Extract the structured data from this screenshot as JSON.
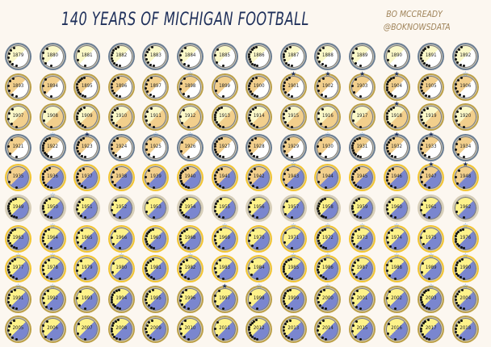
{
  "title": "140 YEARS OF MICHIGAN FOOTBALL",
  "byline": {
    "author": "BO MCCREADY",
    "handle": "@BOKNOWSDATA"
  },
  "colors": {
    "background": "#fcf7f0",
    "title": "#1e2f5a",
    "byline": "#a0845a",
    "fill_light_yellow": "#fbf8c8",
    "fill_bright_yellow": "#fdf28a",
    "fill_tan": "#f2cf8c",
    "fill_cream": "#f6efe0",
    "wedge_blue": "#7a86cf",
    "wedge_white": "#ffffff",
    "border_gray_blue": "#6b7e93",
    "border_gold": "#bca048",
    "border_bright_gold": "#f2c531",
    "border_cream": "#d8cfb8",
    "border_navy": "#2c3c6c",
    "star_navy": "#1e2f5a",
    "star_outline": "#5b8fd1",
    "dot": "#111111"
  },
  "chart_data": {
    "type": "table",
    "title": "140 YEARS OF MICHIGAN FOOTBALL",
    "subtitle": "BO MCCREADY @BOKNOWSDATA",
    "layout": {
      "columns": 14,
      "rows": 10,
      "glyph": "circular badge per season"
    },
    "rows": [
      [
        "1879",
        "1880",
        "1881",
        "1882",
        "1883",
        "1884",
        "1885",
        "1886",
        "1887",
        "1888",
        "1889",
        "1890",
        "1891",
        "1892"
      ],
      [
        "1893",
        "1894",
        "1895",
        "1896",
        "1897",
        "1898",
        "1899",
        "1900",
        "1901",
        "1902",
        "1903",
        "1904",
        "1905",
        "1906"
      ],
      [
        "1907",
        "1908",
        "1909",
        "1910",
        "1911",
        "1912",
        "1913",
        "1914",
        "1915",
        "1916",
        "1917",
        "1918",
        "1919",
        "1920"
      ],
      [
        "1921",
        "1922",
        "1923",
        "1924",
        "1925",
        "1926",
        "1927",
        "1928",
        "1929",
        "1930",
        "1931",
        "1932",
        "1933",
        "1934"
      ],
      [
        "1935",
        "1936",
        "1937",
        "1938",
        "1939",
        "1940",
        "1941",
        "1942",
        "1943",
        "1944",
        "1945",
        "1946",
        "1947",
        "1948"
      ],
      [
        "1949",
        "1950",
        "1951",
        "1952",
        "1953",
        "1954",
        "1955",
        "1956",
        "1957",
        "1958",
        "1959",
        "1960",
        "1961",
        "1962"
      ],
      [
        "1963",
        "1964",
        "1965",
        "1966",
        "1967",
        "1968",
        "1969",
        "1970",
        "1971",
        "1972",
        "1973",
        "1974",
        "1975",
        "1976"
      ],
      [
        "1977",
        "1978",
        "1979",
        "1980",
        "1981",
        "1982",
        "1983",
        "1984",
        "1985",
        "1986",
        "1987",
        "1988",
        "1989",
        "1990"
      ],
      [
        "1991",
        "1992",
        "1993",
        "1994",
        "1995",
        "1996",
        "1997",
        "1998",
        "1999",
        "2000",
        "2001",
        "2002",
        "2003",
        "2004"
      ],
      [
        "2005",
        "2006",
        "2007",
        "2008",
        "2009",
        "2010",
        "2011",
        "2012",
        "2013",
        "2014",
        "2015",
        "2016",
        "2017",
        "2018"
      ]
    ],
    "row_styles": [
      {
        "fill": "fill_light_yellow",
        "wedge": "wedge_white",
        "border": "border_gray_blue"
      },
      {
        "fill": "fill_tan",
        "wedge": "wedge_white",
        "border": "border_gold"
      },
      {
        "fill": "fill_light_yellow",
        "wedge": "fill_tan",
        "border": "border_gold"
      },
      {
        "fill": "fill_tan",
        "wedge": "wedge_white",
        "border": "border_gray_blue"
      },
      {
        "fill": "fill_tan",
        "wedge": "wedge_blue",
        "border": "border_bright_gold"
      },
      {
        "fill": "fill_bright_yellow",
        "wedge": "wedge_blue",
        "border": "border_cream"
      },
      {
        "fill": "fill_bright_yellow",
        "wedge": "wedge_blue",
        "border": "border_bright_gold"
      },
      {
        "fill": "fill_bright_yellow",
        "wedge": "wedge_blue",
        "border": "border_bright_gold"
      },
      {
        "fill": "fill_bright_yellow",
        "wedge": "wedge_blue",
        "border": "border_gold"
      },
      {
        "fill": "fill_bright_yellow",
        "wedge": "wedge_blue",
        "border": "border_gold"
      }
    ],
    "national_title_stars": [
      "1901",
      "1902",
      "1903",
      "1904",
      "1918",
      "1923",
      "1932",
      "1933",
      "1947",
      "1948",
      "1997"
    ],
    "conference_title_stars": [
      "1898",
      "1906",
      "1922",
      "1925",
      "1926",
      "1930",
      "1931",
      "1943",
      "1950",
      "1964",
      "1969",
      "1971",
      "1972",
      "1973",
      "1974",
      "1976",
      "1977",
      "1978",
      "1980",
      "1982",
      "1985",
      "1986",
      "1988",
      "1989",
      "1990",
      "1991",
      "1992",
      "1998",
      "2000",
      "2003",
      "2004"
    ]
  }
}
